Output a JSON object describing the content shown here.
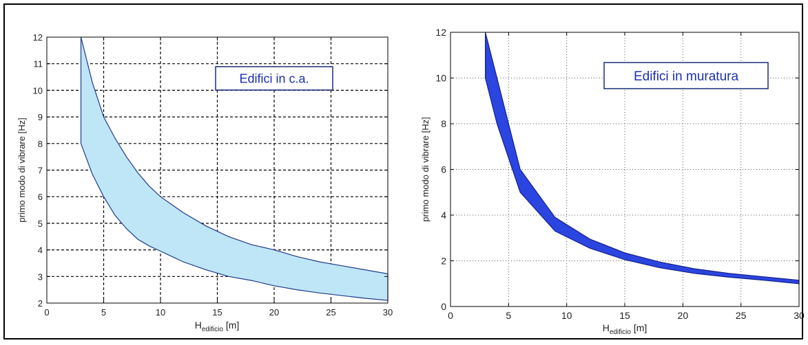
{
  "chart_data": [
    {
      "type": "area",
      "annotation": "Edifici in c.a.",
      "xlabel_main": "H",
      "xlabel_sub": "edificio",
      "xlabel_unit": "[m]",
      "ylabel": "primo modo di vibrare  [Hz]",
      "xlim": [
        0,
        30
      ],
      "ylim": [
        2,
        12
      ],
      "xticks": [
        0,
        5,
        10,
        15,
        20,
        25,
        30
      ],
      "yticks": [
        2,
        3,
        4,
        5,
        6,
        7,
        8,
        9,
        10,
        11,
        12
      ],
      "grid": "dashed",
      "fill_color": "#bfe6f7",
      "edge_color": "#1f3a8a",
      "annotation_color": "#1a2fb5",
      "x": [
        3,
        4,
        5,
        6,
        7,
        8,
        9,
        10,
        12,
        14,
        16,
        18,
        20,
        22,
        24,
        26,
        28,
        30
      ],
      "series": [
        {
          "role": "upper",
          "values": [
            12,
            10.3,
            9,
            8.2,
            7.5,
            6.9,
            6.4,
            6.0,
            5.4,
            4.9,
            4.5,
            4.2,
            4.0,
            3.75,
            3.55,
            3.4,
            3.25,
            3.1
          ]
        },
        {
          "role": "lower",
          "values": [
            8,
            6.85,
            6.0,
            5.3,
            4.8,
            4.4,
            4.15,
            3.95,
            3.55,
            3.25,
            3.0,
            2.85,
            2.65,
            2.5,
            2.38,
            2.28,
            2.18,
            2.1
          ]
        }
      ]
    },
    {
      "type": "area",
      "annotation": "Edifici in muratura",
      "xlabel_main": "H",
      "xlabel_sub": "edificio",
      "xlabel_unit": "[m]",
      "ylabel": "primo modo di vibrare [Hz]",
      "xlim": [
        0,
        30
      ],
      "ylim": [
        0,
        12
      ],
      "xticks": [
        0,
        5,
        10,
        15,
        20,
        25,
        30
      ],
      "yticks": [
        0,
        2,
        4,
        6,
        8,
        10,
        12
      ],
      "grid": "dotted",
      "fill_color": "#2b45e0",
      "edge_color": "#13208a",
      "annotation_color": "#1a2fb5",
      "x": [
        3,
        4,
        5,
        6,
        9,
        12,
        15,
        18,
        21,
        24,
        27,
        30
      ],
      "series": [
        {
          "role": "upper",
          "values": [
            12,
            10.0,
            8.0,
            6.0,
            3.9,
            2.95,
            2.35,
            1.95,
            1.65,
            1.45,
            1.3,
            1.15
          ]
        },
        {
          "role": "lower",
          "values": [
            10,
            8.0,
            6.5,
            5.0,
            3.3,
            2.55,
            2.05,
            1.7,
            1.45,
            1.28,
            1.15,
            1.0
          ]
        }
      ]
    }
  ]
}
